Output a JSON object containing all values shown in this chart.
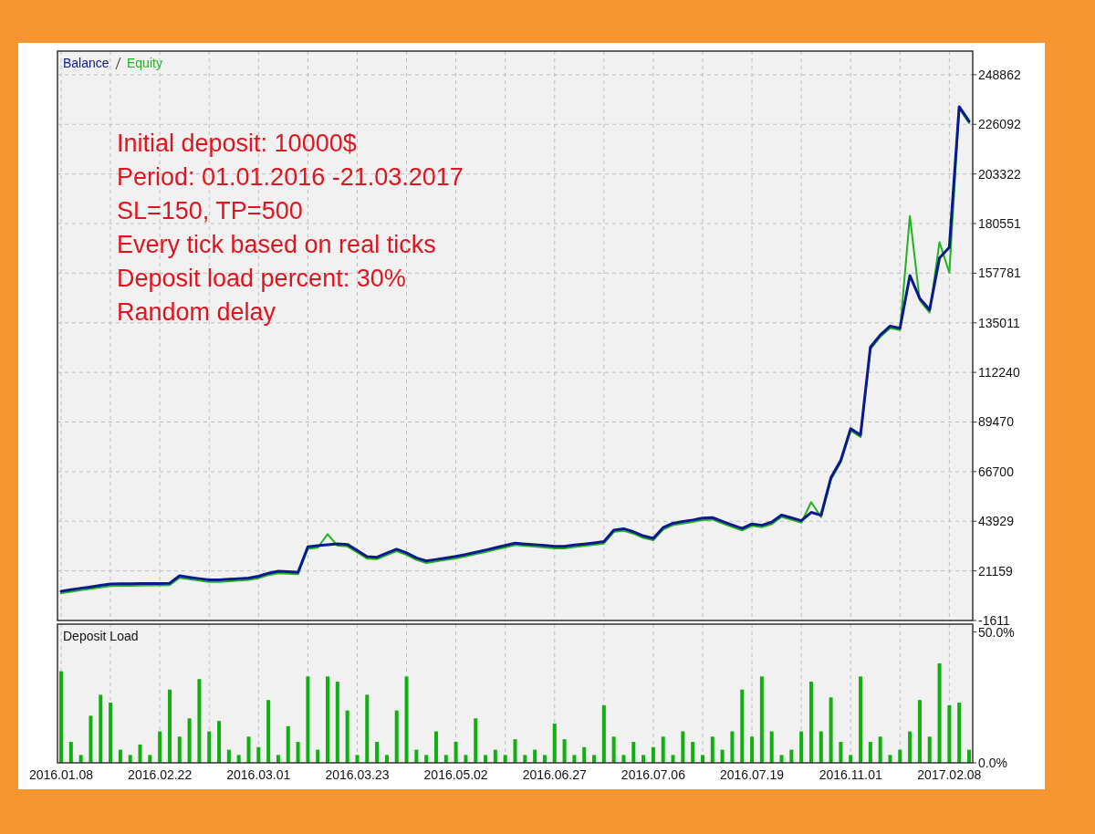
{
  "chart_data": [
    {
      "type": "line",
      "ylim": [
        -1611,
        259700
      ],
      "categories": [
        "2016.01.08",
        null,
        null,
        null,
        null,
        null,
        null,
        null,
        null,
        null,
        "2016.02.22",
        null,
        null,
        null,
        null,
        null,
        null,
        null,
        null,
        null,
        "2016.03.01",
        null,
        null,
        null,
        null,
        null,
        null,
        null,
        null,
        null,
        "2016.03.23",
        null,
        null,
        null,
        null,
        null,
        null,
        null,
        null,
        null,
        "2016.05.02",
        null,
        null,
        null,
        null,
        null,
        null,
        null,
        null,
        null,
        "2016.06.27",
        null,
        null,
        null,
        null,
        null,
        null,
        null,
        null,
        null,
        "2016.07.06",
        null,
        null,
        null,
        null,
        null,
        null,
        null,
        null,
        null,
        "2016.07.19",
        null,
        null,
        null,
        null,
        null,
        null,
        null,
        null,
        null,
        "2016.11.01",
        null,
        null,
        null,
        null,
        null,
        null,
        null,
        null,
        null,
        "2017.02.08",
        null,
        null
      ],
      "yticks": [
        -1611,
        21159,
        43929,
        66700,
        89470,
        112240,
        135011,
        157781,
        180551,
        203322,
        226092,
        248862
      ],
      "tick_labels": "y",
      "grid": true,
      "legend": "top left",
      "annotations": [
        "Initial deposit: 10000$",
        "Period: 01.01.2016 -21.03.2017",
        "SL=150, TP=500",
        "Every tick based on real ticks",
        "Deposit load percent: 30%",
        "Random delay"
      ],
      "series": [
        {
          "name": "Balance",
          "color": "#0a1a8c",
          "values": [
            11800,
            12500,
            13200,
            13800,
            14500,
            15100,
            15200,
            15200,
            15300,
            15400,
            15400,
            15500,
            18900,
            18200,
            17600,
            17000,
            17000,
            17300,
            17600,
            17900,
            18700,
            20100,
            21000,
            20800,
            20500,
            32200,
            32700,
            33100,
            33600,
            33300,
            30500,
            27700,
            27400,
            29300,
            31100,
            29400,
            27100,
            25700,
            26400,
            27100,
            27800,
            28700,
            29700,
            30700,
            31800,
            32800,
            33900,
            33500,
            33200,
            32800,
            32400,
            32400,
            33000,
            33500,
            34000,
            34600,
            39900,
            40500,
            39100,
            37200,
            36100,
            41000,
            43000,
            43800,
            44500,
            45400,
            45600,
            43900,
            42200,
            40600,
            42700,
            42100,
            43500,
            46800,
            45500,
            44200,
            48000,
            46700,
            63900,
            71900,
            86400,
            83500,
            123800,
            129400,
            133500,
            132500,
            156700,
            146200,
            141000,
            164700,
            169700,
            234200,
            227500
          ]
        },
        {
          "name": "Equity",
          "color": "#1fb31f",
          "values": [
            10900,
            11600,
            12300,
            12900,
            13600,
            14200,
            14300,
            14300,
            14400,
            14500,
            14500,
            14600,
            18000,
            17300,
            16700,
            16100,
            16100,
            16400,
            16700,
            17000,
            17800,
            19200,
            20100,
            19900,
            19600,
            31300,
            31800,
            38000,
            32700,
            32400,
            29600,
            26800,
            26500,
            28400,
            30200,
            28500,
            26200,
            24800,
            25500,
            26200,
            26900,
            27800,
            28800,
            29800,
            30900,
            31900,
            33000,
            32600,
            32300,
            31900,
            31500,
            31500,
            32100,
            32600,
            33100,
            33700,
            39000,
            39600,
            38200,
            36300,
            35200,
            40100,
            42100,
            42900,
            43600,
            44500,
            44700,
            43000,
            41300,
            39700,
            41800,
            41200,
            42600,
            45900,
            44600,
            43300,
            52700,
            45800,
            63000,
            71000,
            85500,
            82600,
            122900,
            128500,
            132600,
            131600,
            184000,
            145300,
            139700,
            172000,
            158000,
            233300,
            226600
          ]
        }
      ]
    },
    {
      "type": "bar",
      "title": "Deposit Load",
      "ylim": [
        0,
        53
      ],
      "grid": "x",
      "categories": [
        "2016.01.08",
        null,
        null,
        null,
        null,
        null,
        null,
        null,
        null,
        null,
        "2016.02.22",
        null,
        null,
        null,
        null,
        null,
        null,
        null,
        null,
        null,
        "2016.03.01",
        null,
        null,
        null,
        null,
        null,
        null,
        null,
        null,
        null,
        "2016.03.23",
        null,
        null,
        null,
        null,
        null,
        null,
        null,
        null,
        null,
        "2016.05.02",
        null,
        null,
        null,
        null,
        null,
        null,
        null,
        null,
        null,
        "2016.06.27",
        null,
        null,
        null,
        null,
        null,
        null,
        null,
        null,
        null,
        "2016.07.06",
        null,
        null,
        null,
        null,
        null,
        null,
        null,
        null,
        null,
        "2016.07.19",
        null,
        null,
        null,
        null,
        null,
        null,
        null,
        null,
        null,
        "2016.11.01",
        null,
        null,
        null,
        null,
        null,
        null,
        null,
        null,
        null,
        "2017.02.08",
        null,
        null
      ],
      "yticks": [
        {
          "value": 0,
          "label": "0.0%"
        },
        {
          "value": 50,
          "label": "50.0%"
        }
      ],
      "series": [
        {
          "color": "#10b010",
          "values": [
            35,
            8,
            3,
            18,
            26,
            23,
            5,
            3,
            7,
            3,
            12,
            28,
            10,
            17,
            32,
            12,
            16,
            5,
            3,
            10,
            6,
            24,
            3,
            14,
            8,
            33,
            5,
            33,
            31,
            20,
            3,
            26,
            8,
            3,
            20,
            33,
            5,
            3,
            12,
            3,
            8,
            3,
            17,
            3,
            5,
            3,
            9,
            3,
            5,
            3,
            15,
            9,
            3,
            6,
            3,
            22,
            10,
            3,
            8,
            3,
            6,
            10,
            3,
            12,
            8,
            3,
            10,
            5,
            12,
            28,
            10,
            33,
            12,
            3,
            5,
            12,
            31,
            12,
            25,
            8,
            3,
            33,
            8,
            10,
            3,
            5,
            12,
            24,
            10,
            38,
            22,
            23,
            5
          ]
        }
      ]
    }
  ]
}
